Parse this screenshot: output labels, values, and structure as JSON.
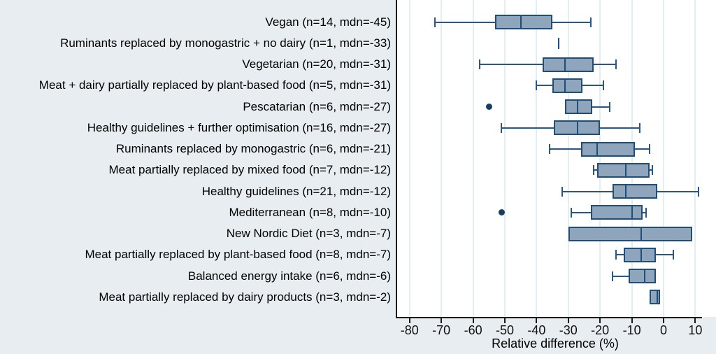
{
  "colors": {
    "label_area_bg": "#e7edf0",
    "plot_bg": "#ffffff",
    "gridline": "#e3efef",
    "axis": "#1a1a1a",
    "box_fill": "#8fa5bc",
    "box_border": "#1f4e79",
    "whisker": "#2a5684",
    "outlier": "#173f63",
    "text": "#000000"
  },
  "chart_data": {
    "type": "boxplot",
    "orientation": "horizontal",
    "title": "",
    "xlabel": "Relative difference (%)",
    "xlim": [
      -84,
      16.5
    ],
    "x_ticks": [
      -80,
      -70,
      -60,
      -50,
      -40,
      -30,
      -20,
      -10,
      0,
      10
    ],
    "grid": "vertical-gridlines-full-height",
    "rows": [
      {
        "label": "Vegan (n=14, mdn=-45)",
        "n": 14,
        "mdn": -45,
        "low": -72,
        "q1": -53,
        "median": -45,
        "q3": -35,
        "high": -23,
        "outliers": []
      },
      {
        "label": "Ruminants replaced by monogastric + no dairy (n=1, mdn=-33)",
        "n": 1,
        "mdn": -33,
        "single": -33,
        "outliers": []
      },
      {
        "label": "Vegetarian (n=20, mdn=-31)",
        "n": 20,
        "mdn": -31,
        "low": -58,
        "q1": -38,
        "median": -31,
        "q3": -22,
        "high": -15,
        "outliers": []
      },
      {
        "label": "Meat + dairy partially replaced by plant-based food (n=5, mdn=-31)",
        "n": 5,
        "mdn": -31,
        "low": -40,
        "q1": -35,
        "median": -31,
        "q3": -25.5,
        "high": -19,
        "outliers": []
      },
      {
        "label": "Pescatarian (n=6, mdn=-27)",
        "n": 6,
        "mdn": -27,
        "low": -31,
        "q1": -31,
        "median": -27,
        "q3": -22.5,
        "high": -17,
        "outliers": [
          -55
        ]
      },
      {
        "label": "Healthy guidelines + further optimisation (n=16, mdn=-27)",
        "n": 16,
        "mdn": -27,
        "low": -51,
        "q1": -34.5,
        "median": -27,
        "q3": -20,
        "high": -7.5,
        "outliers": []
      },
      {
        "label": "Ruminants replaced by monogastric (n=6, mdn=-21)",
        "n": 6,
        "mdn": -21,
        "low": -36,
        "q1": -26,
        "median": -21,
        "q3": -9,
        "high": -4.5,
        "outliers": []
      },
      {
        "label": "Meat partially replaced by mixed food (n=7, mdn=-12)",
        "n": 7,
        "mdn": -12,
        "low": -22,
        "q1": -21,
        "median": -12,
        "q3": -4.5,
        "high": -3.5,
        "outliers": []
      },
      {
        "label": "Healthy guidelines (n=21, mdn=-12)",
        "n": 21,
        "mdn": -12,
        "low": -32,
        "q1": -16,
        "median": -12,
        "q3": -2,
        "high": 11,
        "outliers": []
      },
      {
        "label": "Mediterranean (n=8, mdn=-10)",
        "n": 8,
        "mdn": -10,
        "low": -29,
        "q1": -23,
        "median": -10,
        "q3": -6.5,
        "high": -5.5,
        "outliers": [
          -51
        ]
      },
      {
        "label": "New Nordic Diet (n=3, mdn=-7)",
        "n": 3,
        "mdn": -7,
        "low": -30,
        "q1": -30,
        "median": -7,
        "q3": 9,
        "high": 9,
        "outliers": []
      },
      {
        "label": "Meat partially replaced by plant-based food (n=8, mdn=-7)",
        "n": 8,
        "mdn": -7,
        "low": -15,
        "q1": -12.5,
        "median": -7,
        "q3": -2.5,
        "high": 3,
        "outliers": []
      },
      {
        "label": "Balanced energy intake (n=6, mdn=-6)",
        "n": 6,
        "mdn": -6,
        "low": -16,
        "q1": -11,
        "median": -6,
        "q3": -2.5,
        "high": -2.5,
        "outliers": []
      },
      {
        "label": "Meat partially replaced by dairy products (n=3, mdn=-2)",
        "n": 3,
        "mdn": -2,
        "low": -4.5,
        "q1": -4.5,
        "median": -2,
        "q3": -1,
        "high": -1,
        "outliers": []
      }
    ]
  }
}
